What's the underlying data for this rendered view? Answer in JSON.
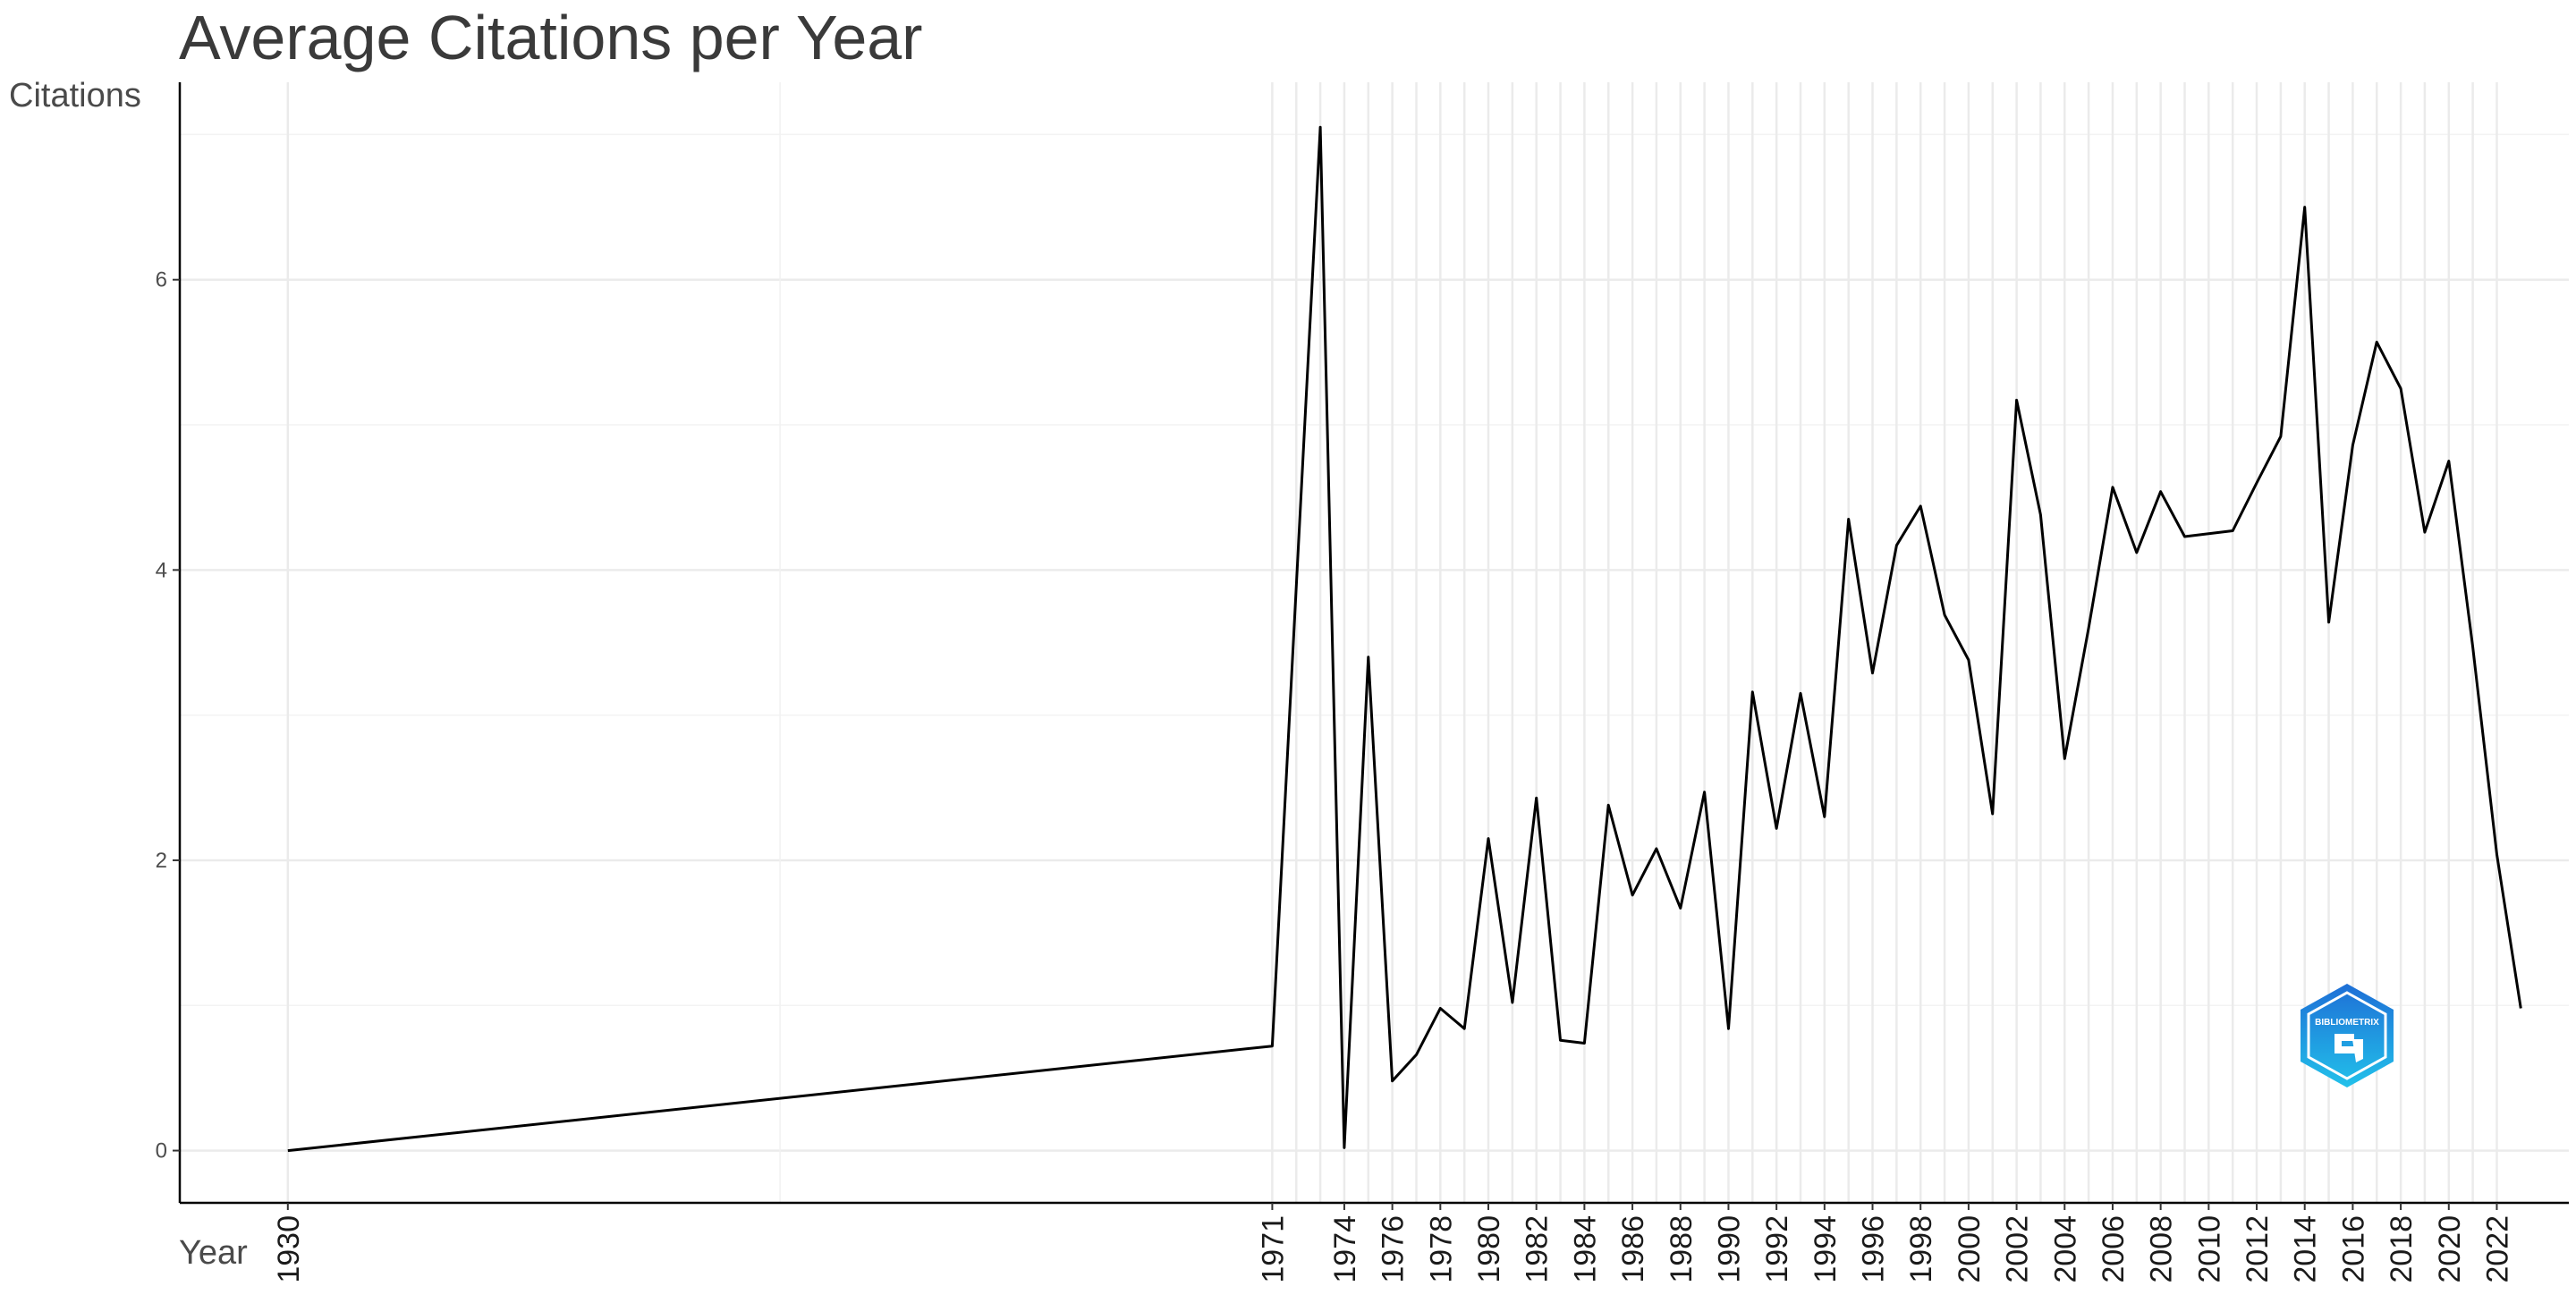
{
  "chart_data": {
    "type": "line",
    "title": "Average Citations per Year",
    "xlabel": "Year",
    "ylabel": "Citations",
    "xlim": [
      1925.5,
      2025
    ],
    "ylim": [
      -0.36,
      7.36
    ],
    "grid": true,
    "y_ticks": [
      0,
      2,
      4,
      6
    ],
    "x_ticks": [
      1930,
      1971,
      1974,
      1976,
      1978,
      1980,
      1982,
      1984,
      1986,
      1988,
      1990,
      1992,
      1994,
      1996,
      1998,
      2000,
      2002,
      2004,
      2006,
      2008,
      2010,
      2012,
      2014,
      2016,
      2018,
      2020,
      2022
    ],
    "series": [
      {
        "line_color": "#000000",
        "x": [
          1930,
          1971,
          1973,
          1974,
          1975,
          1976,
          1977,
          1978,
          1979,
          1980,
          1981,
          1982,
          1983,
          1984,
          1985,
          1986,
          1987,
          1988,
          1989,
          1990,
          1991,
          1992,
          1993,
          1994,
          1995,
          1996,
          1997,
          1998,
          1999,
          2000,
          2001,
          2002,
          2003,
          2004,
          2005,
          2006,
          2007,
          2008,
          2009,
          2010,
          2011,
          2012,
          2013,
          2014,
          2015,
          2016,
          2017,
          2018,
          2019,
          2020,
          2021,
          2022,
          2023
        ],
        "y": [
          0,
          0.72,
          7.05,
          0.02,
          3.4,
          0.48,
          0.66,
          0.98,
          0.84,
          2.15,
          1.02,
          2.43,
          0.76,
          0.74,
          2.38,
          1.76,
          2.08,
          1.67,
          2.47,
          0.84,
          3.16,
          2.22,
          3.15,
          2.3,
          4.35,
          3.29,
          4.17,
          4.44,
          3.69,
          3.38,
          2.32,
          5.17,
          4.38,
          2.7,
          3.6,
          4.57,
          4.12,
          4.54,
          4.23,
          4.25,
          4.27,
          4.6,
          4.92,
          6.5,
          3.64,
          4.86,
          5.57,
          5.25,
          4.26,
          4.75,
          3.47,
          2.04,
          0.98
        ]
      }
    ]
  },
  "logo": {
    "text": "BIBLIOMETRIX",
    "color_top": "#1e6fd6",
    "color_bottom": "#22c1ea"
  }
}
